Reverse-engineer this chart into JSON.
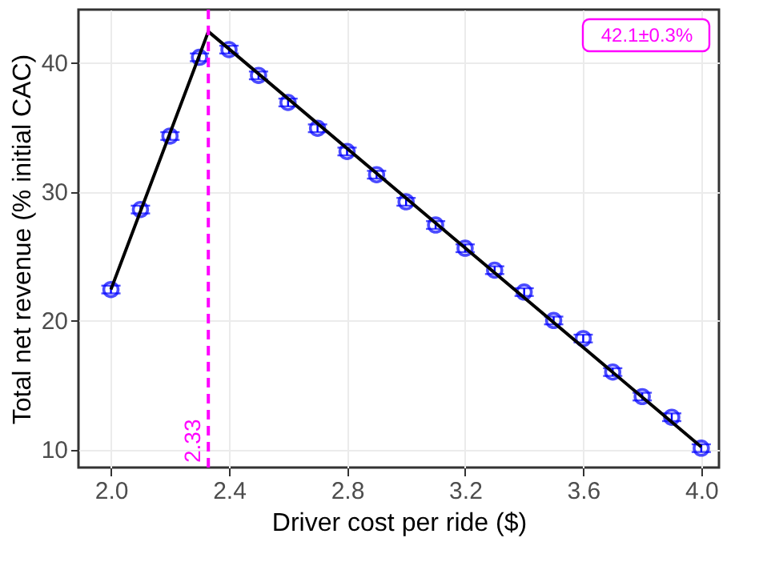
{
  "chart_data": {
    "type": "scatter",
    "xlabel": "Driver cost per ride ($)",
    "ylabel": "Total net revenue (% initial CAC)",
    "x": [
      2.0,
      2.1,
      2.2,
      2.3,
      2.4,
      2.5,
      2.6,
      2.7,
      2.8,
      2.9,
      3.0,
      3.1,
      3.2,
      3.3,
      3.4,
      3.5,
      3.6,
      3.7,
      3.8,
      3.9,
      4.0
    ],
    "series": [
      {
        "type": "scatter",
        "color": "#0000ff",
        "marker": "circle",
        "values": [
          22.4,
          28.6,
          34.3,
          40.4,
          41.0,
          39.0,
          36.9,
          34.9,
          33.1,
          31.3,
          29.2,
          27.4,
          25.6,
          23.9,
          22.2,
          20.0,
          18.6,
          16.0,
          14.1,
          12.5,
          10.1
        ],
        "errors": [
          0.3,
          0.3,
          0.3,
          0.3,
          0.3,
          0.3,
          0.3,
          0.3,
          0.3,
          0.3,
          0.3,
          0.3,
          0.3,
          0.3,
          0.3,
          0.3,
          0.3,
          0.3,
          0.3,
          0.3,
          0.3
        ]
      },
      {
        "type": "line",
        "color": "#000000",
        "marker": "none",
        "line_style": "solid",
        "x": [
          2.0,
          2.33,
          4.0
        ],
        "values": [
          22.4,
          42.4,
          10.2
        ]
      }
    ],
    "xlim": [
      1.89,
      4.06
    ],
    "ylim": [
      8.6,
      44.1
    ],
    "xticks": [
      {
        "value": 2,
        "label": "2.0"
      },
      2.4,
      2.8,
      3.2,
      3.6,
      {
        "value": 4,
        "label": "4.0"
      }
    ],
    "yticks": [
      10,
      20,
      30,
      40
    ],
    "grid": true,
    "legend": false,
    "ref_lines": [
      {
        "axis": "x",
        "value": 2.33,
        "label": "2.33",
        "color": "#ff00ff",
        "line_style": "dashed"
      }
    ],
    "annotations": [
      "42.1±0.3%"
    ]
  }
}
